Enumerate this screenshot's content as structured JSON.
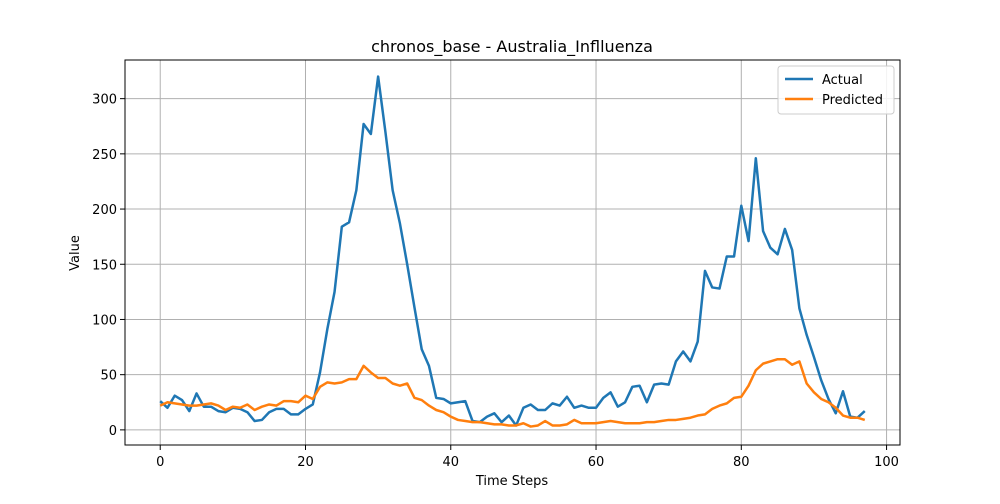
{
  "chart_data": {
    "type": "line",
    "title": "chronos_base - Australia_Inflluenza",
    "xlabel": "Time Steps",
    "ylabel": "Value",
    "xlim": [
      -4.85,
      101.85
    ],
    "ylim": [
      -13.7,
      335.0
    ],
    "xticks": [
      0,
      20,
      40,
      60,
      80,
      100
    ],
    "yticks": [
      0,
      50,
      100,
      150,
      200,
      250,
      300
    ],
    "grid": true,
    "legend_position": "top-right",
    "series": [
      {
        "name": "Actual",
        "color": "#1f77b4",
        "x": [
          0,
          1,
          2,
          3,
          4,
          5,
          6,
          7,
          8,
          9,
          10,
          11,
          12,
          13,
          14,
          15,
          16,
          17,
          18,
          19,
          20,
          21,
          22,
          23,
          24,
          25,
          26,
          27,
          28,
          29,
          30,
          31,
          32,
          33,
          34,
          35,
          36,
          37,
          38,
          39,
          40,
          41,
          42,
          43,
          44,
          45,
          46,
          47,
          48,
          49,
          50,
          51,
          52,
          53,
          54,
          55,
          56,
          57,
          58,
          59,
          60,
          61,
          62,
          63,
          64,
          65,
          66,
          67,
          68,
          69,
          70,
          71,
          72,
          73,
          74,
          75,
          76,
          77,
          78,
          79,
          80,
          81,
          82,
          83,
          84,
          85,
          86,
          87,
          88,
          89,
          90,
          91,
          92,
          93,
          94,
          95,
          96,
          97
        ],
        "values": [
          26,
          20,
          31,
          27,
          17,
          33,
          21,
          21,
          17,
          16,
          20,
          19,
          16,
          8,
          9,
          16,
          19,
          19,
          14,
          14,
          19,
          23,
          52,
          91,
          125,
          184,
          188,
          217,
          277,
          268,
          320,
          270,
          217,
          187,
          150,
          111,
          73,
          58,
          29,
          28,
          24,
          25,
          26,
          8,
          7,
          12,
          15,
          7,
          13,
          4,
          20,
          23,
          18,
          18,
          24,
          22,
          30,
          20,
          22,
          20,
          20,
          29,
          34,
          21,
          25,
          39,
          40,
          25,
          41,
          42,
          41,
          62,
          71,
          62,
          80,
          144,
          129,
          128,
          157,
          157,
          203,
          171,
          246,
          180,
          165,
          159,
          182,
          163,
          110,
          86,
          66,
          45,
          28,
          15,
          35,
          12,
          11,
          17
        ]
      },
      {
        "name": "Predicted",
        "color": "#ff7f0e",
        "x": [
          0,
          1,
          2,
          3,
          4,
          5,
          6,
          7,
          8,
          9,
          10,
          11,
          12,
          13,
          14,
          15,
          16,
          17,
          18,
          19,
          20,
          21,
          22,
          23,
          24,
          25,
          26,
          27,
          28,
          29,
          30,
          31,
          32,
          33,
          34,
          35,
          36,
          37,
          38,
          39,
          40,
          41,
          42,
          43,
          44,
          45,
          46,
          47,
          48,
          49,
          50,
          51,
          52,
          53,
          54,
          55,
          56,
          57,
          58,
          59,
          60,
          61,
          62,
          63,
          64,
          65,
          66,
          67,
          68,
          69,
          70,
          71,
          72,
          73,
          74,
          75,
          76,
          77,
          78,
          79,
          80,
          81,
          82,
          83,
          84,
          85,
          86,
          87,
          88,
          89,
          90,
          91,
          92,
          93,
          94,
          95,
          96,
          97
        ],
        "values": [
          22,
          25,
          24,
          23,
          22,
          22,
          23,
          24,
          22,
          18,
          21,
          20,
          23,
          18,
          21,
          23,
          22,
          26,
          26,
          25,
          31,
          28,
          39,
          43,
          42,
          43,
          46,
          46,
          58,
          52,
          47,
          47,
          42,
          40,
          42,
          29,
          27,
          22,
          18,
          16,
          12,
          9,
          8,
          7,
          7,
          6,
          5,
          5,
          4,
          4,
          6,
          3,
          4,
          8,
          4,
          4,
          5,
          9,
          6,
          6,
          6,
          7,
          8,
          7,
          6,
          6,
          6,
          7,
          7,
          8,
          9,
          9,
          10,
          11,
          13,
          14,
          19,
          22,
          24,
          29,
          30,
          40,
          54,
          60,
          62,
          64,
          64,
          59,
          62,
          42,
          34,
          28,
          25,
          20,
          13,
          11,
          11,
          9
        ]
      }
    ]
  }
}
